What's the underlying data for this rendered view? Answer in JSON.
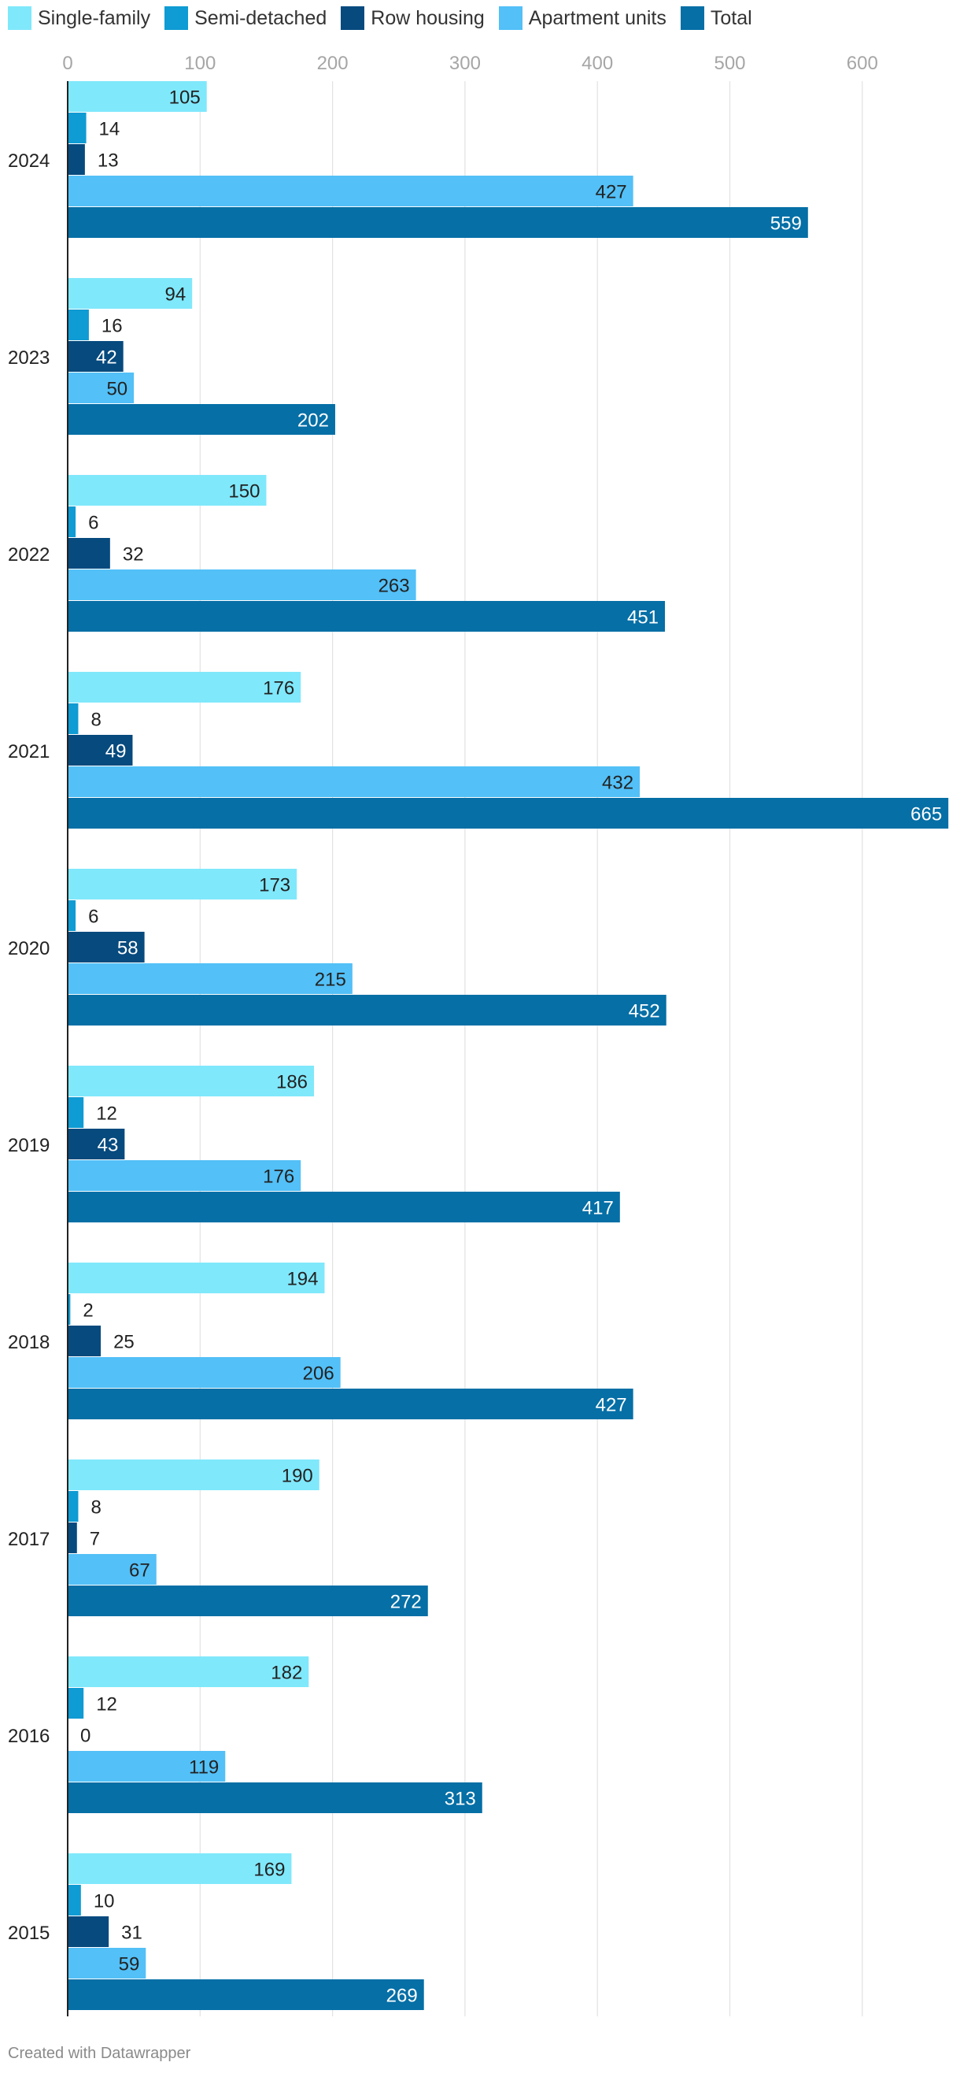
{
  "chart_data": {
    "type": "bar",
    "orientation": "horizontal",
    "categories": [
      "2024",
      "2023",
      "2022",
      "2021",
      "2020",
      "2019",
      "2018",
      "2017",
      "2016",
      "2015"
    ],
    "series": [
      {
        "name": "Single-family",
        "color": "#80e8fb",
        "values": [
          105,
          94,
          150,
          176,
          173,
          186,
          194,
          190,
          182,
          169
        ]
      },
      {
        "name": "Semi-detached",
        "color": "#0f9bd3",
        "values": [
          14,
          16,
          6,
          8,
          6,
          12,
          2,
          8,
          12,
          10
        ]
      },
      {
        "name": "Row housing",
        "color": "#064a7e",
        "values": [
          13,
          42,
          32,
          49,
          58,
          43,
          25,
          7,
          0,
          31
        ]
      },
      {
        "name": "Apartment units",
        "color": "#53c0f7",
        "values": [
          427,
          50,
          263,
          432,
          215,
          176,
          206,
          67,
          119,
          59
        ]
      },
      {
        "name": "Total",
        "color": "#056fa6",
        "values": [
          559,
          202,
          451,
          665,
          452,
          417,
          427,
          272,
          313,
          269
        ]
      }
    ],
    "xlim": [
      0,
      665
    ],
    "x_ticks": [
      0,
      100,
      200,
      300,
      400,
      500,
      600
    ],
    "grid": true,
    "legend_position": "top-left",
    "title": "",
    "xlabel": "",
    "ylabel": ""
  },
  "footer": {
    "credit": "Created with Datawrapper"
  }
}
